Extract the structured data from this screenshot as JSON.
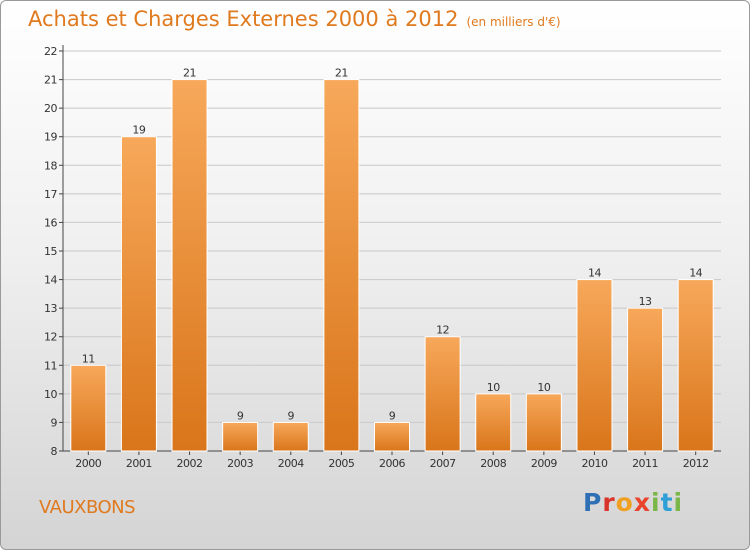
{
  "header": {
    "title": "Achats et Charges Externes 2000 à 2012",
    "subtitle": "(en milliers d'€)"
  },
  "footer": {
    "commune": "VAUXBONS",
    "logo_text": "Proxiti"
  },
  "colors": {
    "title": "#e07a1f",
    "bar_light": "#f7a85a",
    "bar_dark": "#d9751a",
    "grid": "#c8c8c8"
  },
  "chart_data": {
    "type": "bar",
    "title": "Achats et Charges Externes 2000 à 2012",
    "subtitle": "(en milliers d'€)",
    "xlabel": "",
    "ylabel": "",
    "categories": [
      "2000",
      "2001",
      "2002",
      "2003",
      "2004",
      "2005",
      "2006",
      "2007",
      "2008",
      "2009",
      "2010",
      "2011",
      "2012"
    ],
    "values": [
      11,
      19,
      21,
      9,
      9,
      21,
      9,
      12,
      10,
      10,
      14,
      13,
      14
    ],
    "ylim": [
      8,
      22
    ],
    "yticks": [
      8,
      9,
      10,
      11,
      12,
      13,
      14,
      15,
      16,
      17,
      18,
      19,
      20,
      21,
      22
    ],
    "grid": true,
    "legend": "none"
  }
}
